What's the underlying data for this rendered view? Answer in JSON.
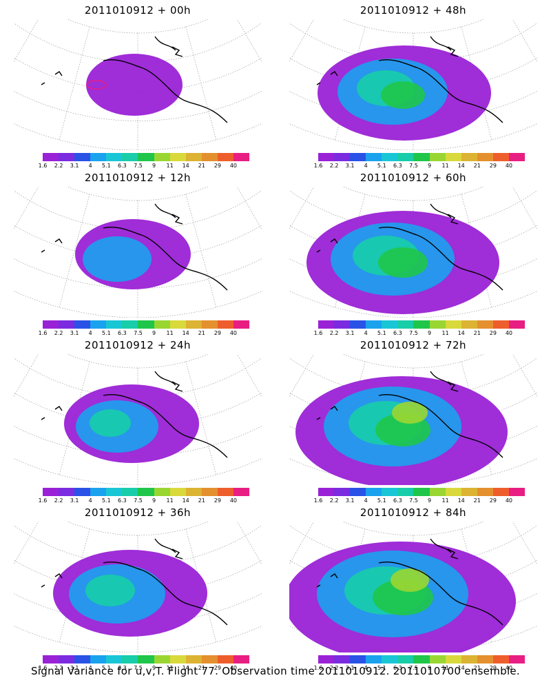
{
  "panels": [
    {
      "title": "2011010912 + 00h",
      "level": 0
    },
    {
      "title": "2011010912 + 48h",
      "level": 4
    },
    {
      "title": "2011010912 + 12h",
      "level": 1
    },
    {
      "title": "2011010912 + 60h",
      "level": 5
    },
    {
      "title": "2011010912 + 24h",
      "level": 2
    },
    {
      "title": "2011010912 + 72h",
      "level": 6
    },
    {
      "title": "2011010912 + 36h",
      "level": 3
    },
    {
      "title": "2011010912 + 84h",
      "level": 7
    }
  ],
  "colorbar": {
    "colors": [
      "#9a22d6",
      "#7b2be0",
      "#2a52e6",
      "#1aa2ee",
      "#19c6d6",
      "#18cdaa",
      "#1fc64a",
      "#9ad632",
      "#d9d93c",
      "#dcb332",
      "#e4902e",
      "#ee5e2c",
      "#e91e82"
    ],
    "labels": [
      "1.6",
      "2.2",
      "3.1",
      "4",
      "5.1",
      "6.3",
      "7.5",
      "9",
      "11",
      "14",
      "21",
      "29",
      "40"
    ]
  },
  "footer": "Signal Variance for u,v,T. Flight 77. Observation time 2011010912. 2011010700 ensemble."
}
